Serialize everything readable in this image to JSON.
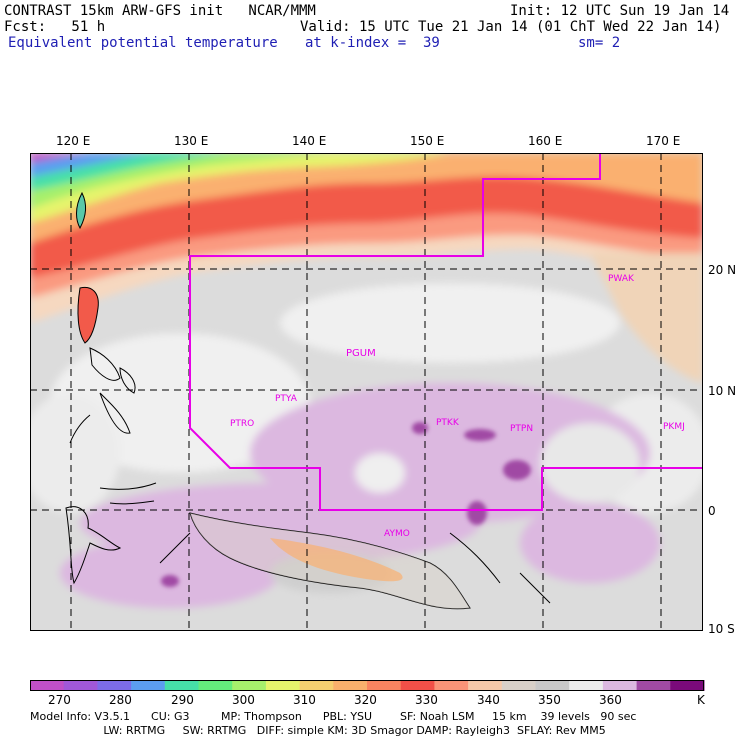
{
  "header": {
    "line1_left": "CONTRAST 15km ARW-GFS init   NCAR/MMM",
    "line1_right": "Init: 12 UTC Sun 19 Jan 14",
    "line2_left": "Fcst:   51 h",
    "line2_right": "Valid: 15 UTC Tue 21 Jan 14 (01 ChT Wed 22 Jan 14)",
    "line3_left": "Equivalent potential temperature",
    "line3_mid": "at k-index =  39",
    "line3_right": "sm= 2"
  },
  "axes": {
    "lon_labels": [
      "120 E",
      "130 E",
      "140 E",
      "150 E",
      "160 E",
      "170 E"
    ],
    "lat_labels": [
      "20 N",
      "10 N",
      "0",
      "10 S"
    ]
  },
  "stations": [
    "PWAK",
    "PGUM",
    "PTYA",
    "PTRO",
    "PTKK",
    "PTPN",
    "PKMJ",
    "AYMO"
  ],
  "colorbar": {
    "labels": [
      "270",
      "280",
      "290",
      "300",
      "310",
      "320",
      "330",
      "340",
      "350",
      "360"
    ],
    "unit": "K",
    "colors": [
      "#c050c8",
      "#a058d8",
      "#7c6ce8",
      "#5c9ef0",
      "#46e0a8",
      "#64ec7c",
      "#a6f06c",
      "#e6f46c",
      "#f6d070",
      "#fab06c",
      "#fa8460",
      "#f25048",
      "#fa9478",
      "#f6c8a8",
      "#d8d0c8",
      "#c8c8c8",
      "#ececec",
      "#dcb8e0",
      "#a04aa4",
      "#7a0a7a"
    ]
  },
  "footer": {
    "line1": "Model Info: V3.5.1      CU: G3         MP: Thompson      PBL: YSU        SF: Noah LSM     15 km    39 levels   90 sec",
    "line2": "                     LW: RRTMG     SW: RRTMG   DIFF: simple KM: 3D Smagor DAMP: Rayleigh3  SFLAY: Rev MM5"
  }
}
